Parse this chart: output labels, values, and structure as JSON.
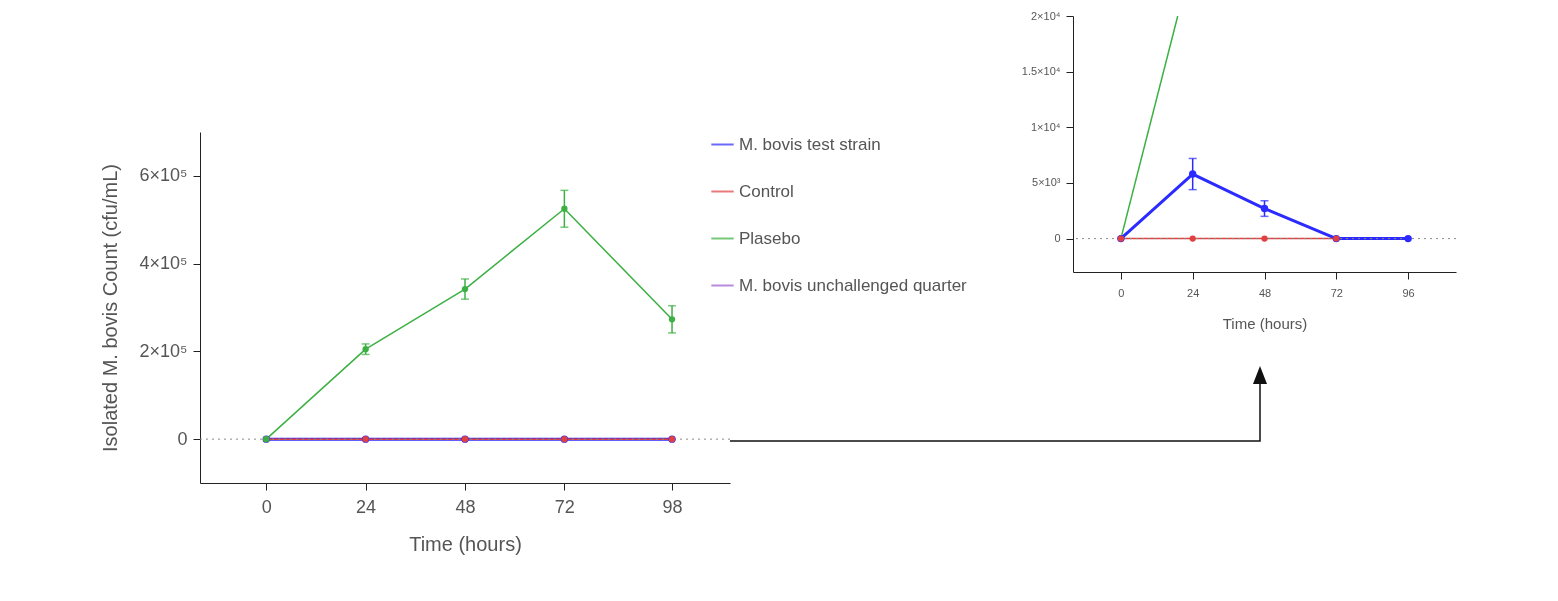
{
  "chart_data": [
    {
      "type": "line",
      "xlabel": "Time (hours)",
      "ylabel": "Isolated M. bovis Count (cfu/mL)",
      "x": [
        0,
        24,
        48,
        72,
        98
      ],
      "xlim": [
        -16,
        112
      ],
      "xticks": [
        0,
        24,
        48,
        72,
        98
      ],
      "ylim": [
        -100000,
        700000
      ],
      "yticks": [
        {
          "value": 0,
          "label": "0"
        },
        {
          "value": 200000,
          "label": "2×10⁵"
        },
        {
          "value": 400000,
          "label": "4×10⁵"
        },
        {
          "value": 600000,
          "label": "6×10⁵"
        }
      ],
      "grid": false,
      "legend": "right",
      "marker": "circle",
      "line_style": "solid",
      "ref_lines": [
        {
          "axis": "y",
          "value": 0,
          "line_style": "dotted",
          "color": "#888888"
        }
      ],
      "series": [
        {
          "name": "M. bovis test strain",
          "color": "#2b2bff",
          "values": [
            0,
            0,
            0,
            0,
            0
          ]
        },
        {
          "name": "Control",
          "color": "#e04040",
          "values": [
            0,
            0,
            0,
            0,
            0
          ]
        },
        {
          "name": "Plasebo",
          "color": "#3cb043",
          "values": [
            0,
            205000,
            342000,
            525000,
            273000
          ],
          "errors": [
            null,
            12000,
            23000,
            42000,
            31000
          ]
        },
        {
          "name": "M. bovis unchallenged quarter",
          "color": "#9b59d0",
          "values": [
            null,
            null,
            null,
            null,
            null
          ]
        }
      ]
    },
    {
      "type": "line",
      "xlabel": "Time (hours)",
      "x": [
        0,
        24,
        48,
        72,
        96
      ],
      "xlim": [
        -16,
        112
      ],
      "xticks": [
        0,
        24,
        48,
        72,
        96
      ],
      "ylim": [
        -3000,
        20000
      ],
      "yticks": [
        {
          "value": 0,
          "label": "0"
        },
        {
          "value": 5000,
          "label": "5×10³"
        },
        {
          "value": 10000,
          "label": "1×10⁴"
        },
        {
          "value": 15000,
          "label": "1.5×10⁴"
        },
        {
          "value": 20000,
          "label": "2×10⁴"
        }
      ],
      "grid": false,
      "marker": "circle",
      "line_style": "solid",
      "ref_lines": [
        {
          "axis": "y",
          "value": 0,
          "line_style": "dotted",
          "color": "#888888"
        }
      ],
      "series": [
        {
          "color": "#2b2bff",
          "values": [
            0,
            5800,
            2700,
            0,
            0
          ],
          "errors": [
            null,
            1400,
            700,
            null,
            null
          ]
        },
        {
          "color": "#e04040",
          "values": [
            0,
            0,
            0,
            0,
            null
          ]
        },
        {
          "color": "#3cb043",
          "x": [
            0,
            19
          ],
          "values": [
            0,
            20000
          ],
          "marker": "none"
        }
      ]
    }
  ]
}
